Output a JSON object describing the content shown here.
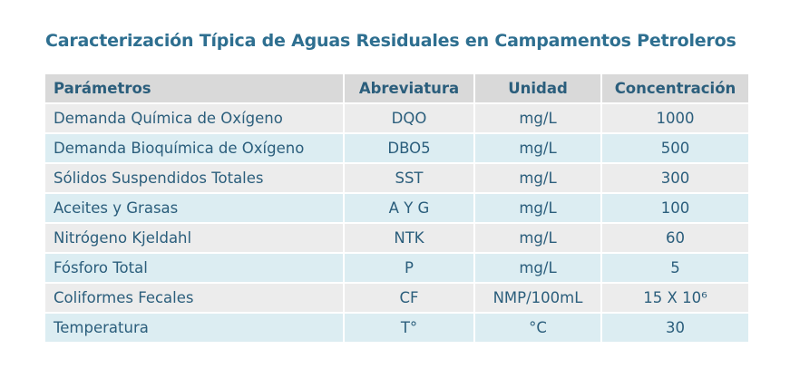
{
  "title": "Caracterización Típica de Aguas Residuales en Campamentos Petroleros",
  "table": {
    "header": [
      "Parámetros",
      "Abreviatura",
      "Unidad",
      "Concentración"
    ],
    "rows": [
      [
        "Demanda Química de Oxígeno",
        "DQO",
        "mg/L",
        "1000"
      ],
      [
        "Demanda Bioquímica de Oxígeno",
        "DBO5",
        "mg/L",
        "500"
      ],
      [
        "Sólidos Suspendidos Totales",
        "SST",
        "mg/L",
        "300"
      ],
      [
        "Aceites y Grasas",
        "A Y G",
        "mg/L",
        "100"
      ],
      [
        "Nitrógeno Kjeldahl",
        "NTK",
        "mg/L",
        "60"
      ],
      [
        "Fósforo Total",
        "P",
        "mg/L",
        "5"
      ],
      [
        "Coliformes Fecales",
        "CF",
        "NMP/100mL",
        "15 X 10⁶"
      ],
      [
        "Temperatura",
        "T°",
        "°C",
        "30"
      ]
    ]
  }
}
